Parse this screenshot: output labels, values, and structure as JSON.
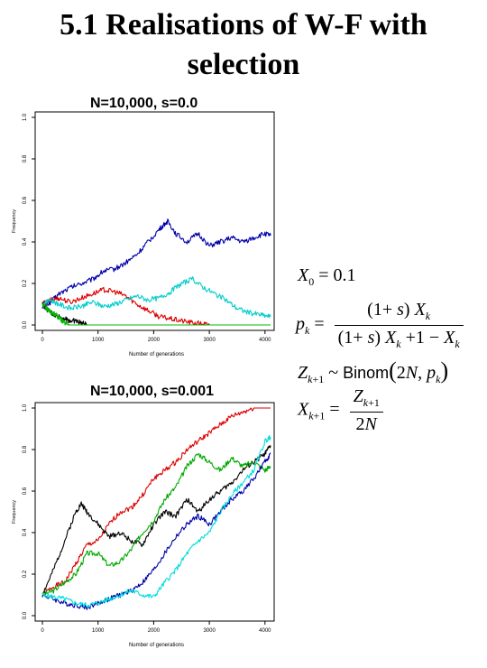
{
  "title_line1": "5.1 Realisations of W-F with",
  "title_line2": "selection",
  "formulas": {
    "line1": "X0 = 0.1",
    "line2": "pk = (1+s)Xk / ((1+s)Xk + 1 − Xk)",
    "line3": "Zk+1 ~ Binom(2N, pk)",
    "line4": "Xk+1 = Zk+1 / 2N",
    "binom_word": "Binom"
  },
  "chart_data": [
    {
      "type": "line",
      "title": "N=10,000, s=0.0",
      "xlabel": "Number of generations",
      "ylabel": "Frequency",
      "xlim": [
        0,
        4100
      ],
      "ylim": [
        0,
        1
      ],
      "xticks": [
        0,
        1000,
        2000,
        3000,
        4000
      ],
      "yticks": [
        0.0,
        0.2,
        0.4,
        0.6,
        0.8,
        1.0
      ],
      "xtick_labels": [
        "0",
        "1000",
        "2000",
        "3000",
        "4000"
      ],
      "ytick_labels": [
        "0.0",
        "0.2",
        "0.4",
        "0.6",
        "0.8",
        "1.0"
      ],
      "series": [
        {
          "color": "#0000aa",
          "x": [
            0,
            150,
            300,
            500,
            700,
            900,
            1100,
            1300,
            1500,
            1700,
            1900,
            2100,
            2250,
            2400,
            2600,
            2800,
            3000,
            3200,
            3400,
            3600,
            3800,
            4000,
            4100
          ],
          "y": [
            0.09,
            0.11,
            0.15,
            0.18,
            0.2,
            0.22,
            0.26,
            0.27,
            0.3,
            0.34,
            0.4,
            0.46,
            0.5,
            0.44,
            0.4,
            0.44,
            0.38,
            0.4,
            0.42,
            0.4,
            0.42,
            0.44,
            0.43
          ]
        },
        {
          "color": "#dd0000",
          "x": [
            0,
            150,
            300,
            500,
            700,
            900,
            1100,
            1300,
            1500,
            1700,
            1900,
            2100,
            2300,
            2500,
            2700,
            2900,
            3000
          ],
          "y": [
            0.1,
            0.12,
            0.13,
            0.11,
            0.13,
            0.15,
            0.17,
            0.16,
            0.14,
            0.1,
            0.07,
            0.04,
            0.03,
            0.02,
            0.01,
            0.005,
            0.0
          ]
        },
        {
          "color": "#00cccc",
          "x": [
            0,
            150,
            300,
            500,
            700,
            900,
            1100,
            1300,
            1500,
            1700,
            1900,
            2100,
            2300,
            2500,
            2700,
            2900,
            3100,
            3300,
            3500,
            3700,
            3900,
            4100
          ],
          "y": [
            0.1,
            0.12,
            0.1,
            0.08,
            0.09,
            0.11,
            0.09,
            0.1,
            0.12,
            0.14,
            0.12,
            0.13,
            0.16,
            0.2,
            0.22,
            0.18,
            0.15,
            0.12,
            0.08,
            0.06,
            0.05,
            0.04
          ]
        },
        {
          "color": "#000000",
          "x": [
            0,
            100,
            200,
            300,
            400,
            500,
            600,
            700,
            800
          ],
          "y": [
            0.1,
            0.07,
            0.05,
            0.04,
            0.03,
            0.02,
            0.02,
            0.01,
            0.0
          ]
        },
        {
          "color": "#00bb00",
          "x": [
            0,
            80,
            160,
            240,
            320,
            400,
            500
          ],
          "y": [
            0.1,
            0.08,
            0.06,
            0.05,
            0.03,
            0.01,
            0.0
          ]
        },
        {
          "color": "#00bb00",
          "x": [
            500,
            4100
          ],
          "y": [
            0.0,
            0.0
          ]
        }
      ]
    },
    {
      "type": "line",
      "title": "N=10,000, s=0.001",
      "xlabel": "Number of generations",
      "ylabel": "Frequency",
      "xlim": [
        0,
        4100
      ],
      "ylim": [
        0,
        1
      ],
      "xticks": [
        0,
        1000,
        2000,
        3000,
        4000
      ],
      "yticks": [
        0.0,
        0.2,
        0.4,
        0.6,
        0.8,
        1.0
      ],
      "xtick_labels": [
        "0",
        "1000",
        "2000",
        "3000",
        "4000"
      ],
      "ytick_labels": [
        "0.0",
        "0.2",
        "0.4",
        "0.6",
        "0.8",
        "1.0"
      ],
      "series": [
        {
          "color": "#dd0000",
          "x": [
            0,
            200,
            400,
            600,
            800,
            1000,
            1200,
            1400,
            1600,
            1800,
            2000,
            2200,
            2400,
            2600,
            2800,
            3000,
            3200,
            3400,
            3600,
            3800,
            4000,
            4100
          ],
          "y": [
            0.1,
            0.14,
            0.16,
            0.25,
            0.34,
            0.36,
            0.44,
            0.5,
            0.52,
            0.58,
            0.66,
            0.7,
            0.74,
            0.8,
            0.84,
            0.88,
            0.92,
            0.96,
            0.98,
            1.0,
            1.0,
            1.0
          ]
        },
        {
          "color": "#000000",
          "x": [
            0,
            200,
            400,
            600,
            700,
            800,
            1000,
            1200,
            1400,
            1600,
            1800,
            2000,
            2200,
            2400,
            2600,
            2800,
            3000,
            3200,
            3400,
            3600,
            3800,
            4000,
            4100
          ],
          "y": [
            0.1,
            0.22,
            0.36,
            0.5,
            0.54,
            0.5,
            0.44,
            0.38,
            0.4,
            0.36,
            0.34,
            0.44,
            0.5,
            0.48,
            0.56,
            0.5,
            0.56,
            0.6,
            0.64,
            0.7,
            0.74,
            0.78,
            0.82
          ]
        },
        {
          "color": "#00aa00",
          "x": [
            0,
            200,
            400,
            600,
            800,
            1000,
            1200,
            1400,
            1600,
            1800,
            2000,
            2200,
            2400,
            2600,
            2800,
            3000,
            3200,
            3400,
            3600,
            3800,
            4000,
            4100
          ],
          "y": [
            0.1,
            0.12,
            0.16,
            0.2,
            0.3,
            0.3,
            0.24,
            0.26,
            0.32,
            0.4,
            0.46,
            0.56,
            0.62,
            0.72,
            0.78,
            0.74,
            0.7,
            0.76,
            0.72,
            0.74,
            0.7,
            0.72
          ]
        },
        {
          "color": "#0000aa",
          "x": [
            0,
            200,
            400,
            600,
            800,
            1000,
            1200,
            1400,
            1600,
            1800,
            2000,
            2200,
            2400,
            2600,
            2800,
            3000,
            3200,
            3400,
            3600,
            3800,
            4000,
            4100
          ],
          "y": [
            0.1,
            0.08,
            0.06,
            0.05,
            0.04,
            0.06,
            0.08,
            0.1,
            0.12,
            0.16,
            0.22,
            0.3,
            0.38,
            0.44,
            0.48,
            0.44,
            0.5,
            0.56,
            0.6,
            0.66,
            0.74,
            0.78
          ]
        },
        {
          "color": "#00dddd",
          "x": [
            0,
            200,
            400,
            600,
            800,
            1000,
            1200,
            1400,
            1600,
            1800,
            2000,
            2200,
            2400,
            2600,
            2800,
            3000,
            3200,
            3400,
            3600,
            3800,
            4000,
            4100
          ],
          "y": [
            0.1,
            0.09,
            0.08,
            0.06,
            0.05,
            0.06,
            0.08,
            0.1,
            0.12,
            0.1,
            0.09,
            0.16,
            0.22,
            0.3,
            0.36,
            0.4,
            0.5,
            0.58,
            0.64,
            0.7,
            0.84,
            0.86
          ]
        }
      ]
    }
  ]
}
